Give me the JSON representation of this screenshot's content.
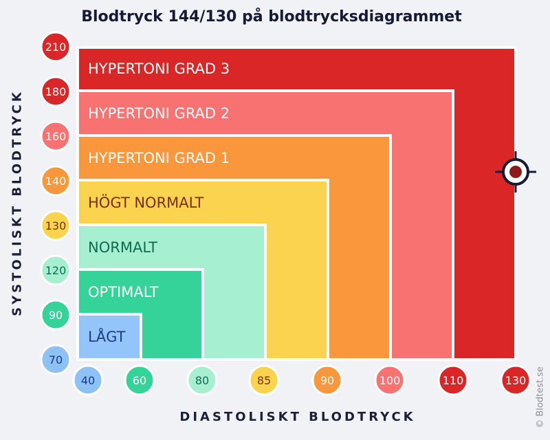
{
  "chart_data": {
    "type": "other",
    "title": "Blodtryck 144/130 på blodtrycksdiagrammet",
    "ylabel": "SYSTOLISKT BLODTRYCK",
    "xlabel": "DIASTOLISKT BLODTRYCK",
    "y_ticks": [
      "70",
      "90",
      "120",
      "130",
      "140",
      "160",
      "180",
      "210"
    ],
    "x_ticks": [
      "40",
      "60",
      "80",
      "85",
      "90",
      "100",
      "110",
      "130"
    ],
    "tick_colors": [
      "#8ec2f7",
      "#35d39a",
      "#a7efd1",
      "#fcd34e",
      "#fa963c",
      "#f77271",
      "#da2626",
      "#da2626"
    ],
    "tick_text_colors": [
      "#1b3a8a",
      "#ffffff",
      "#136b52",
      "#7a3300",
      "#ffffff",
      "#ffffff",
      "#ffffff",
      "#ffffff"
    ],
    "categories": [
      {
        "name": "LÅGT",
        "systolic_max": 90,
        "diastolic_max": 60,
        "color": "#94c5fa",
        "text_color": "#1d3b8a"
      },
      {
        "name": "OPTIMALT",
        "systolic_max": 120,
        "diastolic_max": 80,
        "color": "#35d39a",
        "text_color": "#ffffff"
      },
      {
        "name": "NORMALT",
        "systolic_max": 130,
        "diastolic_max": 85,
        "color": "#a7efd1",
        "text_color": "#106b50"
      },
      {
        "name": "HÖGT NORMALT",
        "systolic_max": 140,
        "diastolic_max": 90,
        "color": "#fcd34e",
        "text_color": "#7c2d04"
      },
      {
        "name": "HYPERTONI GRAD 1",
        "systolic_max": 160,
        "diastolic_max": 100,
        "color": "#fa963c",
        "text_color": "#ffffff"
      },
      {
        "name": "HYPERTONI GRAD 2",
        "systolic_max": 180,
        "diastolic_max": 110,
        "color": "#f77271",
        "text_color": "#ffffff"
      },
      {
        "name": "HYPERTONI GRAD 3",
        "systolic_max": 210,
        "diastolic_max": 130,
        "color": "#da2626",
        "text_color": "#ffffff"
      }
    ],
    "marker": {
      "systolic": 144,
      "diastolic": 130,
      "color": "#8b1a1a",
      "ring_color": "#151a35"
    }
  },
  "credit": "© Blodtest.se"
}
